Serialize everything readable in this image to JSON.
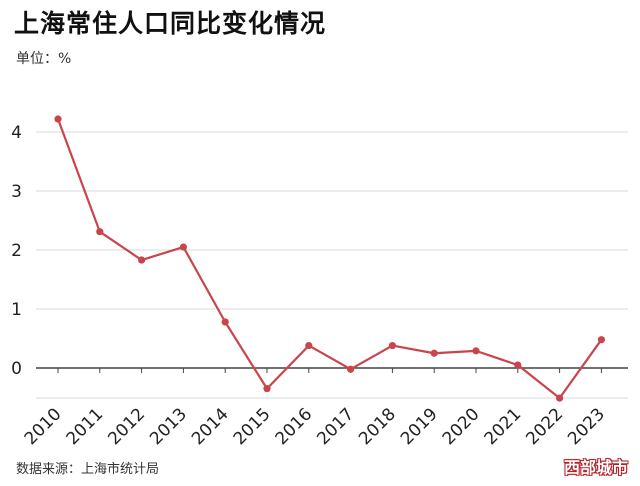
{
  "title": "上海常住人口同比变化情况",
  "unit": "单位：%",
  "source": "数据来源：上海市统计局",
  "watermark": "西部城市",
  "colors": {
    "line": "#c9454b",
    "grid": "#d9d9d9",
    "zero": "#444444"
  },
  "chart_data": {
    "type": "line",
    "title": "上海常住人口同比变化情况",
    "xlabel": "",
    "ylabel": "单位：%",
    "categories": [
      "2010",
      "2011",
      "2012",
      "2013",
      "2014",
      "2015",
      "2016",
      "2017",
      "2018",
      "2019",
      "2020",
      "2021",
      "2022",
      "2023"
    ],
    "values": [
      4.22,
      2.31,
      1.83,
      2.05,
      0.78,
      -0.35,
      0.38,
      -0.02,
      0.38,
      0.25,
      0.29,
      0.05,
      -0.51,
      0.48
    ],
    "yticks": [
      0,
      1,
      2,
      3,
      4
    ],
    "ylim": [
      -0.55,
      4.3
    ],
    "grid": true,
    "legend": "none"
  }
}
